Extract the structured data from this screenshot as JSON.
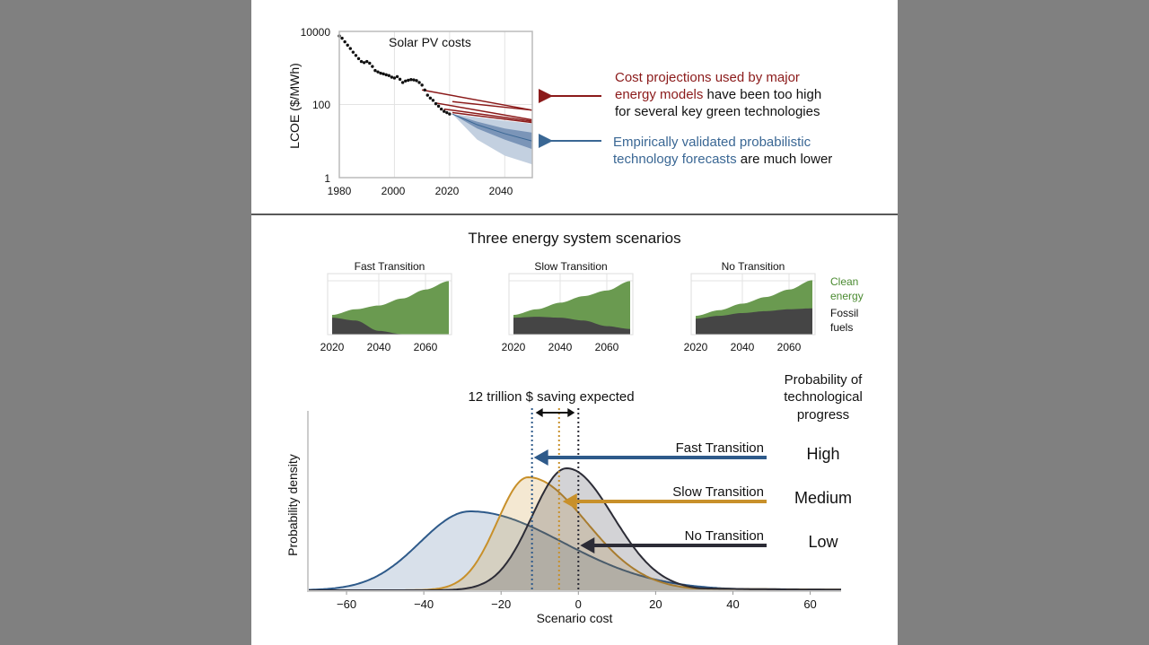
{
  "colors": {
    "background": "#808080",
    "panel": "#ffffff",
    "projection_red": "#8b1a1a",
    "forecast_blue": "#3a6794",
    "clean_green": "#6a9a50",
    "fossil_dark": "#454545",
    "fast_blue": "#2e5a8a",
    "slow_orange": "#c8902a",
    "no_dark": "#2c2c36"
  },
  "top": {
    "annotation_red": {
      "line1": "Cost projections used by major",
      "line2_colored": "energy models",
      "line2_rest": " have been too high",
      "line3": "for several key green technologies"
    },
    "annotation_blue": {
      "line1": "Empirically validated probabilistic",
      "line2_colored": "technology forecasts",
      "line2_rest": " are much lower"
    }
  },
  "scenarios_title": "Three energy system scenarios",
  "legend": {
    "clean_1": "Clean",
    "clean_2": "energy",
    "fossil_1": "Fossil",
    "fossil_2": "fuels"
  },
  "bottom_annotations": {
    "saving": "12 trillion $ saving expected",
    "prob_header_1": "Probability of",
    "prob_header_2": "technological",
    "prob_header_3": "progress",
    "rows": [
      {
        "scenario": "Fast Transition",
        "probability": "High"
      },
      {
        "scenario": "Slow Transition",
        "probability": "Medium"
      },
      {
        "scenario": "No Transition",
        "probability": "Low"
      }
    ]
  },
  "chart_data": [
    {
      "type": "scatter",
      "title": "Solar PV costs",
      "xlabel": "",
      "ylabel": "LCOE ($/MWh)",
      "yscale": "log",
      "xlim": [
        1980,
        2050
      ],
      "ylim": [
        1,
        10000
      ],
      "xticks": [
        "1980",
        "2000",
        "2020",
        "2040"
      ],
      "yticks": [
        "1",
        "100",
        "10000"
      ],
      "grid": true,
      "historical": {
        "x": [
          1980,
          1981,
          1982,
          1983,
          1984,
          1985,
          1986,
          1987,
          1988,
          1989,
          1990,
          1991,
          1992,
          1993,
          1994,
          1995,
          1996,
          1997,
          1998,
          1999,
          2000,
          2001,
          2002,
          2003,
          2004,
          2005,
          2006,
          2007,
          2008,
          2009,
          2010,
          2011,
          2012,
          2013,
          2014,
          2015,
          2016,
          2017,
          2018,
          2019,
          2020
        ],
        "y": [
          7500,
          6500,
          5200,
          4200,
          3400,
          2700,
          2200,
          1800,
          1500,
          1400,
          1500,
          1350,
          1100,
          850,
          780,
          720,
          690,
          650,
          620,
          560,
          530,
          580,
          490,
          400,
          440,
          460,
          480,
          470,
          450,
          400,
          340,
          250,
          180,
          150,
          130,
          105,
          90,
          75,
          65,
          60,
          55
        ]
      },
      "projections": [
        {
          "x": [
            2010,
            2050
          ],
          "y": [
            250,
            70
          ]
        },
        {
          "x": [
            2021,
            2050
          ],
          "y": [
            120,
            70
          ]
        },
        {
          "x": [
            2015,
            2050
          ],
          "y": [
            110,
            38
          ]
        },
        {
          "x": [
            2018,
            2050
          ],
          "y": [
            75,
            35
          ]
        },
        {
          "x": [
            2021,
            2050
          ],
          "y": [
            60,
            32
          ]
        }
      ],
      "forecast": {
        "x": [
          2021,
          2030,
          2040,
          2050
        ],
        "median": [
          55,
          28,
          16,
          10
        ],
        "inner_low": [
          55,
          22,
          11,
          6
        ],
        "inner_high": [
          55,
          34,
          22,
          17
        ],
        "outer_low": [
          55,
          11,
          4,
          2.3
        ],
        "outer_high": [
          55,
          45,
          36,
          30
        ]
      }
    },
    {
      "type": "area",
      "title": "Fast Transition",
      "xticks": [
        "2020",
        "2040",
        "2060"
      ],
      "x": [
        2020,
        2030,
        2040,
        2050,
        2060,
        2070
      ],
      "series": [
        {
          "name": "Fossil fuels",
          "values": [
            18,
            15,
            4,
            0.5,
            0,
            0
          ]
        },
        {
          "name": "Clean energy",
          "values": [
            3,
            12,
            27,
            38,
            48,
            57
          ]
        }
      ]
    },
    {
      "type": "area",
      "title": "Slow Transition",
      "xticks": [
        "2020",
        "2040",
        "2060"
      ],
      "x": [
        2020,
        2030,
        2040,
        2050,
        2060,
        2070
      ],
      "series": [
        {
          "name": "Fossil fuels",
          "values": [
            18,
            19,
            18,
            15,
            9,
            6
          ]
        },
        {
          "name": "Clean energy",
          "values": [
            3,
            8,
            16,
            26,
            38,
            51
          ]
        }
      ]
    },
    {
      "type": "area",
      "title": "No Transition",
      "xticks": [
        "2020",
        "2040",
        "2060"
      ],
      "x": [
        2020,
        2030,
        2040,
        2050,
        2060,
        2070
      ],
      "series": [
        {
          "name": "Fossil fuels",
          "values": [
            17,
            20,
            23,
            25,
            27,
            28
          ]
        },
        {
          "name": "Clean energy",
          "values": [
            3,
            6,
            10,
            15,
            21,
            30
          ]
        }
      ]
    },
    {
      "type": "area",
      "xlabel": "Scenario cost",
      "ylabel": "Probability density",
      "xlim": [
        -70,
        68
      ],
      "xticks": [
        "-60",
        "-40",
        "-20",
        "0",
        "20",
        "40",
        "60"
      ],
      "grid": false,
      "series": [
        {
          "name": "Fast Transition",
          "mode": -28,
          "left_spread": 13,
          "right_spread": 24,
          "peak_density": 0.44,
          "mean": -12
        },
        {
          "name": "Slow Transition",
          "mode": -13,
          "left_spread": 8,
          "right_spread": 15,
          "peak_density": 0.63,
          "mean": -5
        },
        {
          "name": "No Transition",
          "mode": -3,
          "left_spread": 9,
          "right_spread": 12,
          "peak_density": 0.68,
          "mean": 0
        }
      ]
    }
  ]
}
